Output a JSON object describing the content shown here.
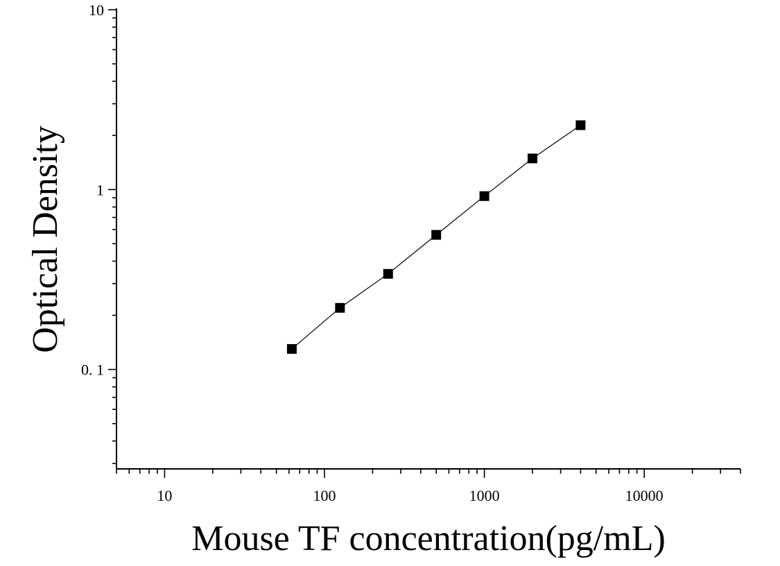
{
  "chart_data": {
    "type": "scatter",
    "title": "",
    "xlabel": "Mouse TF concentration(pg/mL)",
    "ylabel": "Optical Density",
    "x_scale": "log",
    "y_scale": "log",
    "xlim": [
      5,
      40000
    ],
    "ylim": [
      0.028,
      10
    ],
    "x_ticks": [
      {
        "value": 10,
        "label": "10"
      },
      {
        "value": 100,
        "label": "100"
      },
      {
        "value": 1000,
        "label": "1000"
      },
      {
        "value": 10000,
        "label": "10000"
      }
    ],
    "y_ticks": [
      {
        "value": 0.1,
        "label": "0. 1"
      },
      {
        "value": 1,
        "label": "1"
      },
      {
        "value": 10,
        "label": "10"
      }
    ],
    "grid": false,
    "legend": "none",
    "series": [
      {
        "marker": "square",
        "color": "#000000",
        "points": [
          {
            "x": 62.5,
            "y": 0.13
          },
          {
            "x": 125,
            "y": 0.22
          },
          {
            "x": 250,
            "y": 0.34
          },
          {
            "x": 500,
            "y": 0.56
          },
          {
            "x": 1000,
            "y": 0.92
          },
          {
            "x": 2000,
            "y": 1.49
          },
          {
            "x": 4000,
            "y": 2.28
          }
        ],
        "fit_line": true
      }
    ]
  }
}
